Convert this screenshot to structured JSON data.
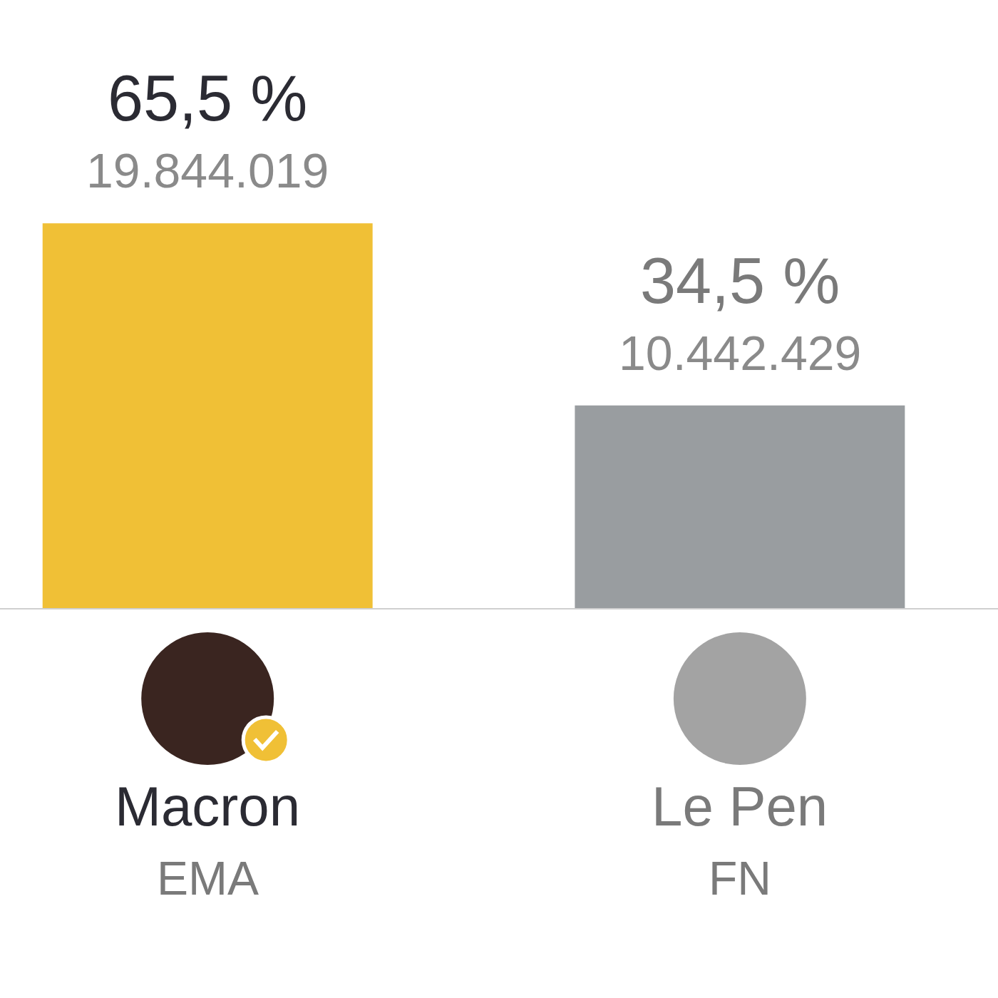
{
  "chart_data": {
    "type": "bar",
    "categories": [
      "Macron",
      "Le Pen"
    ],
    "values": [
      65.5,
      34.5
    ],
    "value_labels": [
      "65,5 %",
      "34,5 %"
    ],
    "votes": [
      "19.844.019",
      "10.442.429"
    ],
    "parties": [
      "EMA",
      "FN"
    ],
    "colors": [
      "#f0c036",
      "#999da0"
    ],
    "ylim": [
      0,
      100
    ],
    "grid": false,
    "data_labels": true,
    "tick_labels": "x"
  }
}
